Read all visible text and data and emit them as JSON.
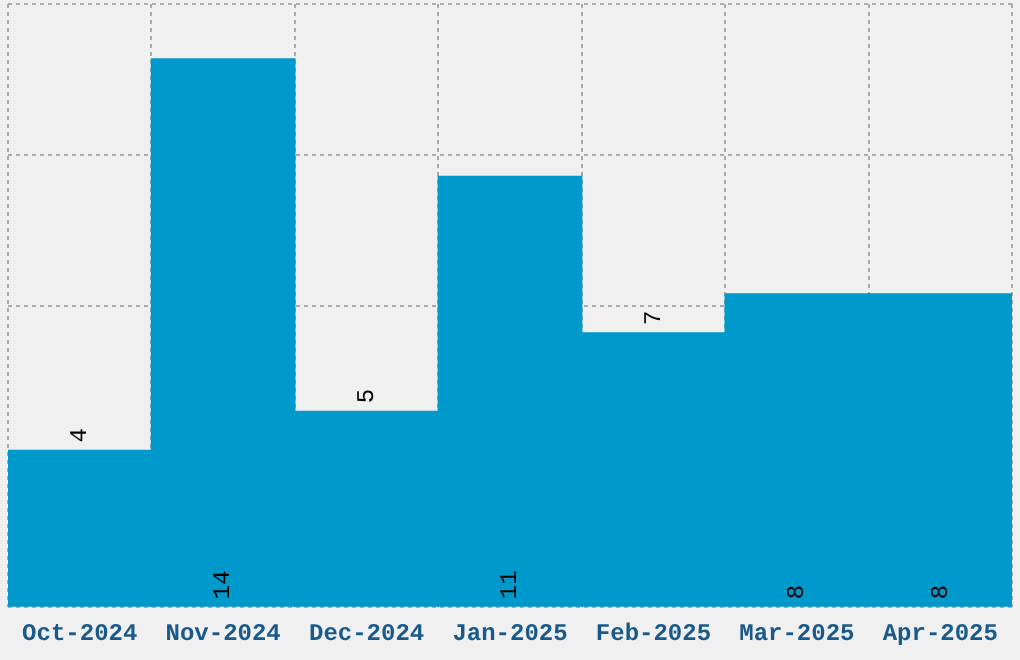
{
  "chart_data": {
    "type": "bar",
    "categories": [
      "Oct-2024",
      "Nov-2024",
      "Dec-2024",
      "Jan-2025",
      "Feb-2025",
      "Mar-2025",
      "Apr-2025"
    ],
    "values": [
      4,
      14,
      5,
      11,
      7,
      8,
      8
    ],
    "color": "#0099cc",
    "ylim": [
      0,
      15.4
    ],
    "tick_labels": "x",
    "grid": true,
    "legend": false,
    "data_labels": true
  }
}
